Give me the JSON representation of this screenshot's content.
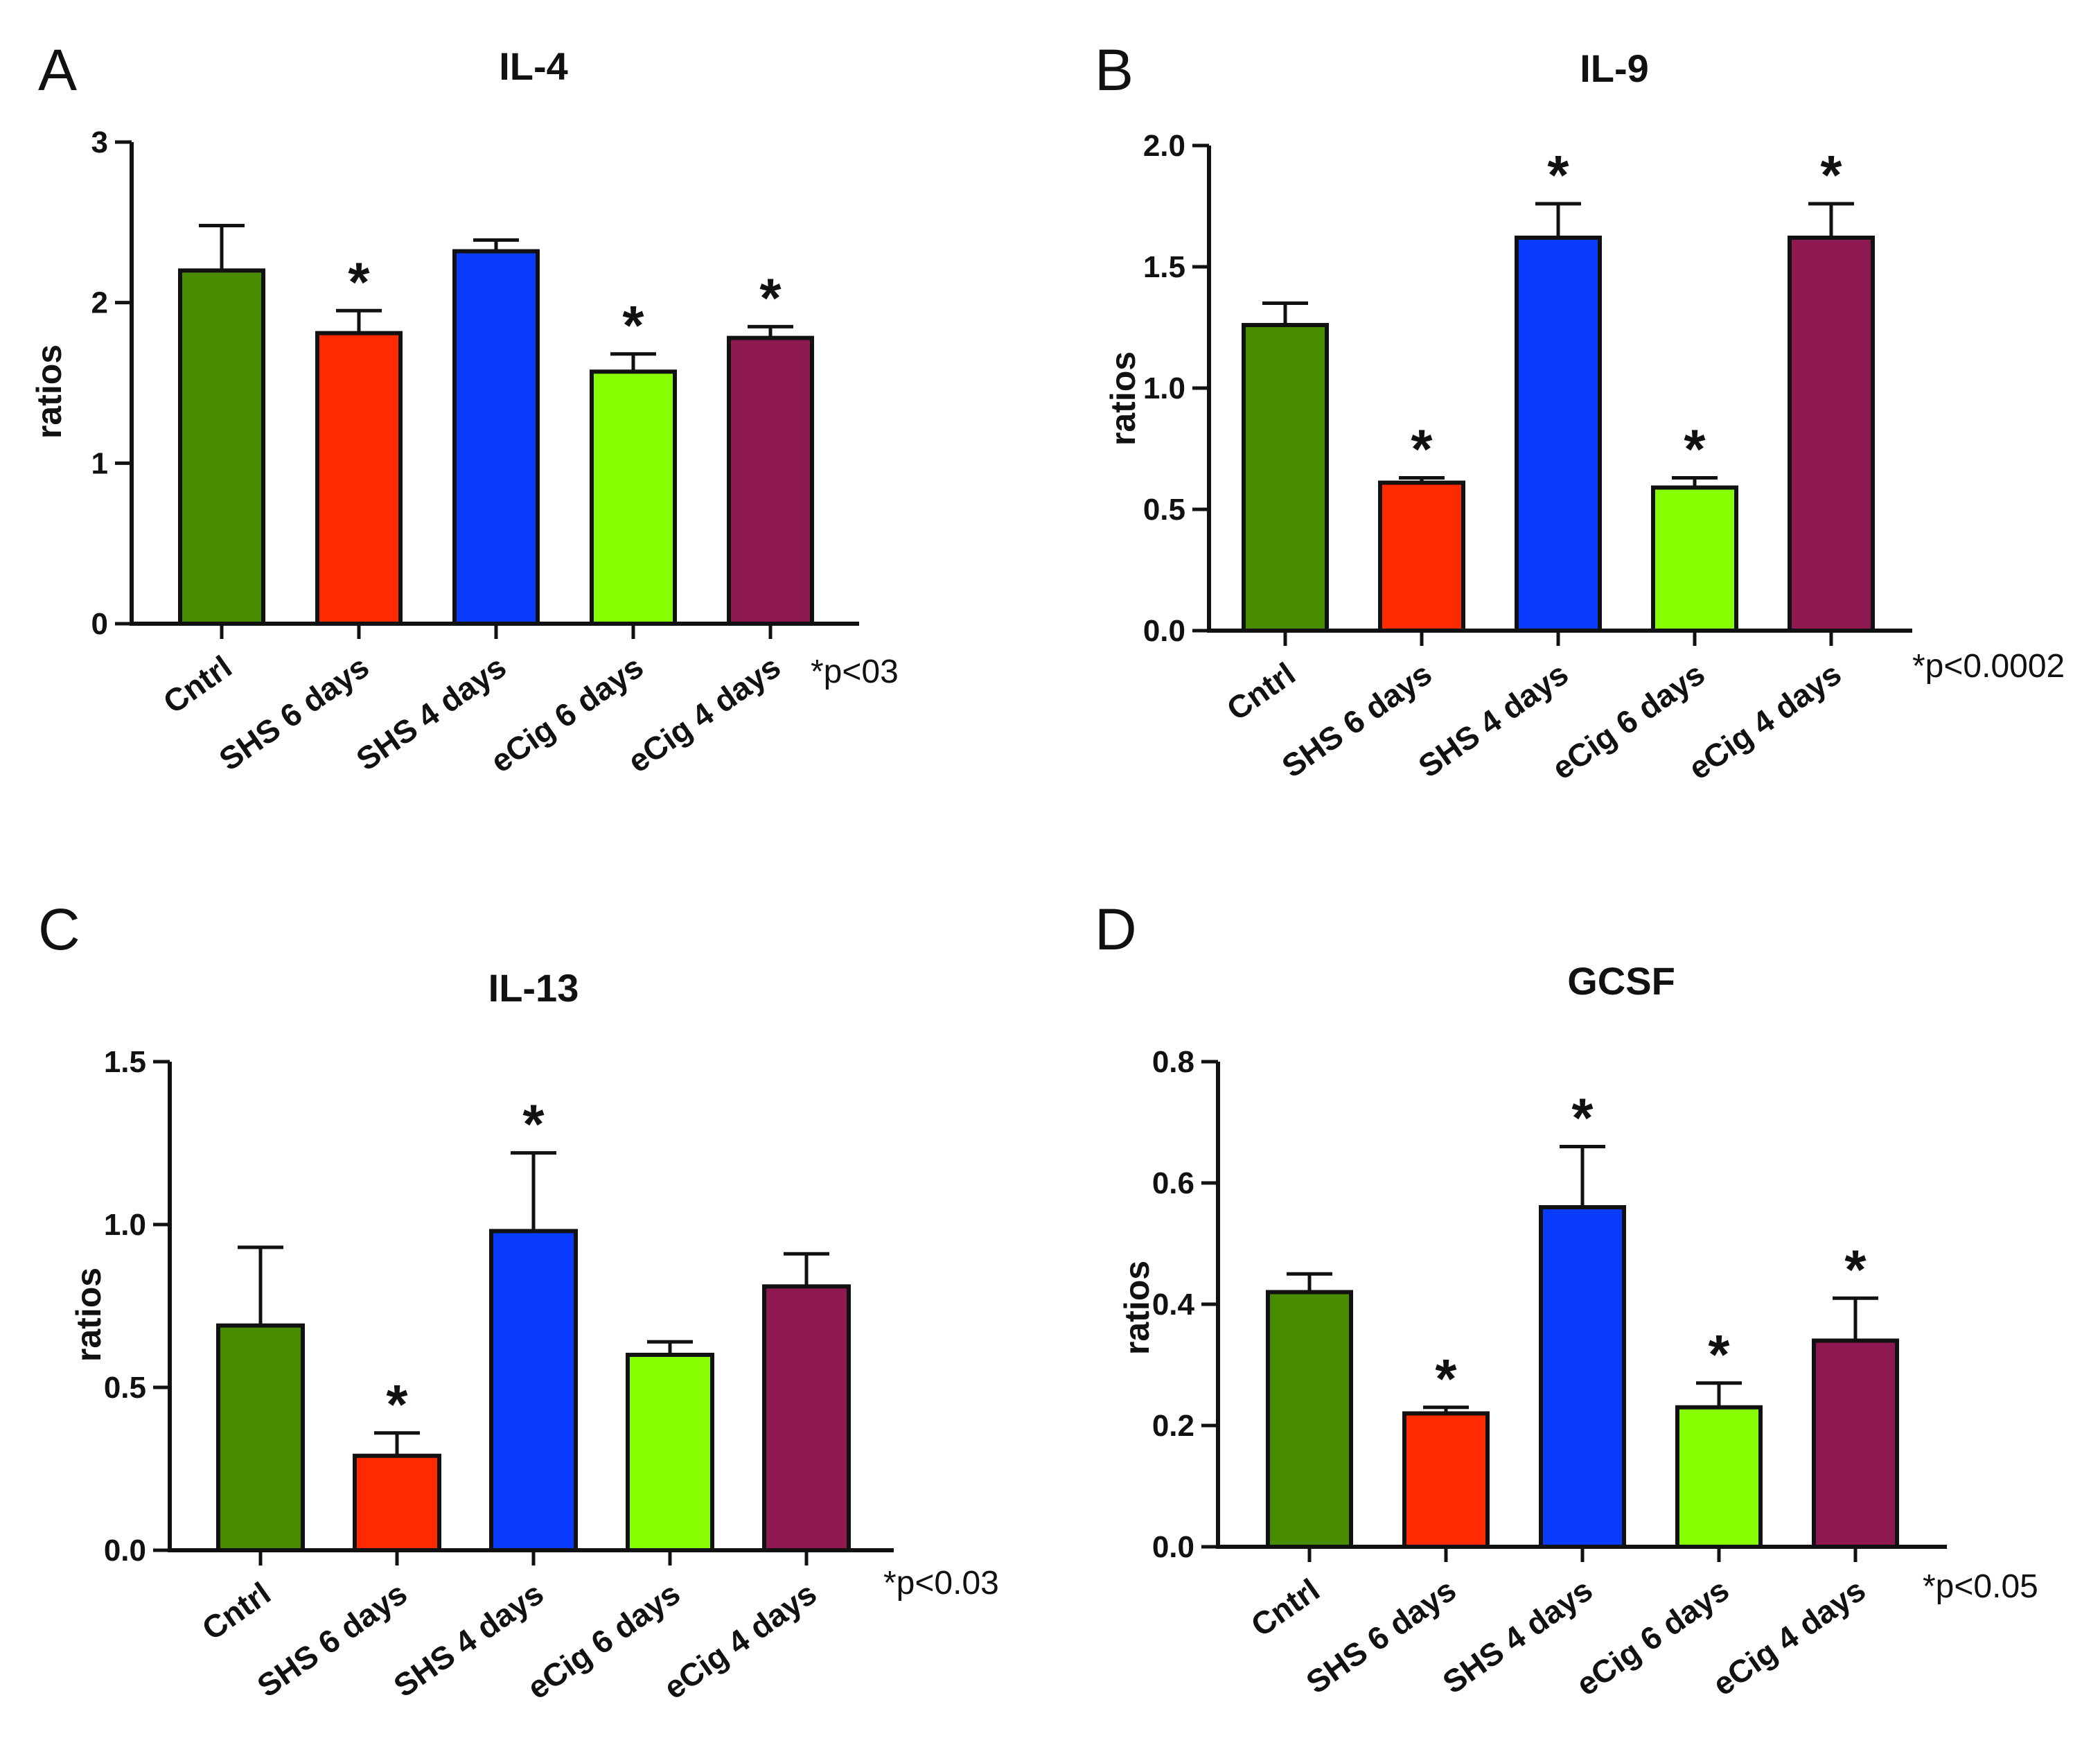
{
  "chart_data": [
    {
      "type": "bar",
      "panel": "A",
      "title": "IL-4",
      "ylabel": "ratios",
      "ylim": [
        0,
        3
      ],
      "yticks": [
        "0",
        "1",
        "2",
        "3"
      ],
      "categories": [
        "Cntrl",
        "SHS 6 days",
        "SHS 4 days",
        "eCig 6 days",
        "eCig 4 days"
      ],
      "values": [
        2.2,
        1.81,
        2.32,
        1.57,
        1.78
      ],
      "errors": [
        0.28,
        0.14,
        0.07,
        0.11,
        0.07
      ],
      "significant": [
        false,
        true,
        false,
        true,
        true
      ],
      "significance_symbol": "*",
      "pvalue_text": "*p<03",
      "colors": [
        "#4a8c00",
        "#ff2a00",
        "#0a3cff",
        "#88ff00",
        "#8e1850"
      ]
    },
    {
      "type": "bar",
      "panel": "B",
      "title": "IL-9",
      "ylabel": "ratios",
      "ylim": [
        0,
        2
      ],
      "yticks": [
        "0.0",
        "0.5",
        "1.0",
        "1.5",
        "2.0"
      ],
      "categories": [
        "Cntrl",
        "SHS 6 days",
        "SHS 4 days",
        "eCig 6 days",
        "eCig 4 days"
      ],
      "values": [
        1.26,
        0.61,
        1.62,
        0.59,
        1.62
      ],
      "errors": [
        0.09,
        0.02,
        0.14,
        0.04,
        0.14
      ],
      "significant": [
        false,
        true,
        true,
        true,
        true
      ],
      "significance_symbol": "*",
      "pvalue_text": "*p<0.0002",
      "colors": [
        "#4a8c00",
        "#ff2a00",
        "#0a3cff",
        "#88ff00",
        "#8e1850"
      ]
    },
    {
      "type": "bar",
      "panel": "C",
      "title": "IL-13",
      "ylabel": "ratios",
      "ylim": [
        0,
        1.5
      ],
      "yticks": [
        "0.0",
        "0.5",
        "1.0",
        "1.5"
      ],
      "categories": [
        "Cntrl",
        "SHS 6 days",
        "SHS 4 days",
        "eCig 6 days",
        "eCig 4 days"
      ],
      "values": [
        0.69,
        0.29,
        0.98,
        0.6,
        0.81
      ],
      "errors": [
        0.24,
        0.07,
        0.24,
        0.04,
        0.1
      ],
      "significant": [
        false,
        true,
        true,
        false,
        false
      ],
      "significance_symbol": "*",
      "pvalue_text": "*p<0.03",
      "colors": [
        "#4a8c00",
        "#ff2a00",
        "#0a3cff",
        "#88ff00",
        "#8e1850"
      ]
    },
    {
      "type": "bar",
      "panel": "D",
      "title": "GCSF",
      "ylabel": "ratios",
      "ylim": [
        0,
        0.8
      ],
      "yticks": [
        "0.0",
        "0.2",
        "0.4",
        "0.6",
        "0.8"
      ],
      "categories": [
        "Cntrl",
        "SHS 6 days",
        "SHS 4 days",
        "eCig 6 days",
        "eCig 4 days"
      ],
      "values": [
        0.42,
        0.22,
        0.56,
        0.23,
        0.34
      ],
      "errors": [
        0.03,
        0.01,
        0.1,
        0.04,
        0.07
      ],
      "significant": [
        false,
        true,
        true,
        true,
        true
      ],
      "significance_symbol": "*",
      "pvalue_text": "*p<0.05",
      "colors": [
        "#4a8c00",
        "#ff2a00",
        "#0a3cff",
        "#88ff00",
        "#8e1850"
      ]
    }
  ]
}
